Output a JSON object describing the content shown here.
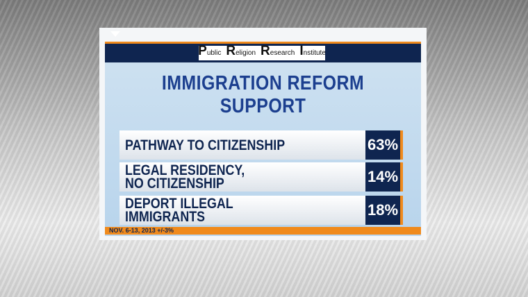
{
  "header": {
    "source_words": [
      "Public",
      "Religion",
      "Research",
      "Institute"
    ]
  },
  "title": "IMMIGRATION REFORM SUPPORT",
  "rows": [
    {
      "label_lines": [
        "PATHWAY TO CITIZENSHIP"
      ],
      "value": "63%"
    },
    {
      "label_lines": [
        "LEGAL RESIDENCY,",
        "NO CITIZENSHIP"
      ],
      "value": "14%"
    },
    {
      "label_lines": [
        "DEPORT ILLEGAL",
        "IMMIGRANTS"
      ],
      "value": "18%"
    }
  ],
  "footer": "NOV. 6-13, 2013 +/-3%"
}
